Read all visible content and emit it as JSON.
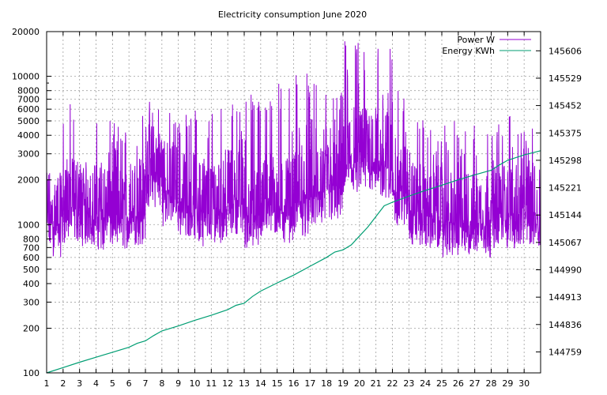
{
  "chart_data": {
    "type": "line",
    "title": "Electricity consumption June 2020",
    "xlabel": "",
    "ylabel": "",
    "y2label": "",
    "x_ticks": [
      "1",
      "2",
      "3",
      "4",
      "5",
      "6",
      "7",
      "8",
      "9",
      "10",
      "11",
      "12",
      "13",
      "14",
      "15",
      "16",
      "17",
      "18",
      "19",
      "20",
      "21",
      "22",
      "23",
      "24",
      "25",
      "26",
      "27",
      "28",
      "29",
      "30"
    ],
    "xlim": [
      1,
      31
    ],
    "ylim": [
      100,
      20000
    ],
    "yscale": "log",
    "y_ticks": [
      "100",
      "200",
      "300",
      "400",
      "500",
      "600",
      "700",
      "800",
      "1000",
      "2000",
      "3000",
      "4000",
      "5000",
      "6000",
      "7000",
      "8000",
      "10000",
      "20000"
    ],
    "y2lim": [
      144700,
      145660
    ],
    "y2_ticks": [
      "144759",
      "144836",
      "144913",
      "144990",
      "145067",
      "145144",
      "145221",
      "145298",
      "145375",
      "145452",
      "145529",
      "145606"
    ],
    "grid": true,
    "legend_position": "top-right",
    "series": [
      {
        "name": "Power W",
        "axis": "left",
        "color": "#9400d3",
        "note": "high-frequency power samples; daily baseline / peak envelope",
        "daily_base": [
          800,
          1000,
          950,
          900,
          900,
          950,
          1700,
          1300,
          1100,
          950,
          1000,
          1150,
          900,
          1100,
          1000,
          1100,
          1250,
          1350,
          2000,
          2200,
          2000,
          1300,
          950,
          900,
          800,
          800,
          800,
          900,
          900,
          950
        ],
        "daily_peak": [
          2500,
          7000,
          2700,
          5000,
          5000,
          7000,
          7000,
          6000,
          6000,
          7000,
          7000,
          7000,
          8000,
          10000,
          11000,
          11000,
          9000,
          8000,
          18000,
          18000,
          17000,
          8000,
          5500,
          4500,
          5000,
          5000,
          4500,
          5000,
          6000,
          4500
        ]
      },
      {
        "name": "Energy KWh",
        "axis": "right",
        "color": "#009e73",
        "x": [
          1,
          2,
          3,
          4,
          5,
          6,
          6.5,
          7,
          7.5,
          8,
          9,
          10,
          11,
          12,
          12.5,
          13,
          13.5,
          14,
          15,
          16,
          17,
          18,
          18.5,
          19,
          19.5,
          20,
          20.5,
          21,
          21.5,
          22,
          23,
          24,
          25,
          26,
          27,
          28,
          28.5,
          29,
          30,
          31
        ],
        "values": [
          144700,
          144715,
          144730,
          144744,
          144758,
          144772,
          144783,
          144790,
          144805,
          144818,
          144832,
          144848,
          144862,
          144878,
          144890,
          144896,
          144915,
          144930,
          144953,
          144975,
          145000,
          145025,
          145040,
          145046,
          145060,
          145085,
          145110,
          145140,
          145170,
          145180,
          145197,
          145213,
          145228,
          145243,
          145257,
          145270,
          145285,
          145298,
          145313,
          145325
        ]
      }
    ]
  }
}
